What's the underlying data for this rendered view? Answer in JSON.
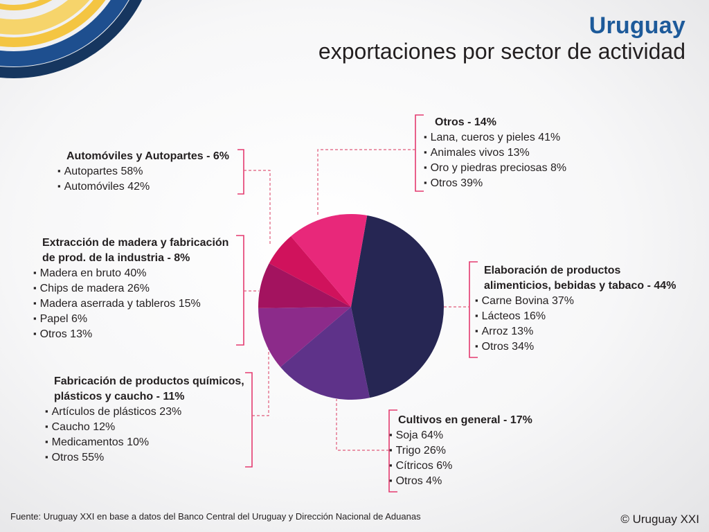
{
  "header": {
    "title": "Uruguay",
    "subtitle": "exportaciones por sector de actividad"
  },
  "chart_data": {
    "type": "pie",
    "title": "exportaciones por sector de actividad",
    "slices": [
      {
        "label": "Elaboración de productos alimenticios, bebidas y tabaco",
        "value": 44,
        "color": "#262653"
      },
      {
        "label": "Cultivos en general",
        "value": 17,
        "color": "#5e3289"
      },
      {
        "label": "Fabricación de productos químicos, plásticos y caucho",
        "value": 11,
        "color": "#8c2b8a"
      },
      {
        "label": "Extracción de madera y fabricación de prod. de la industria",
        "value": 8,
        "color": "#a3135f"
      },
      {
        "label": "Automóviles y Autopartes",
        "value": 6,
        "color": "#d0125c"
      },
      {
        "label": "Otros",
        "value": 14,
        "color": "#e8287a"
      }
    ],
    "start_angle_deg": -80,
    "direction": "clockwise",
    "bracket_color": "#e43a6f",
    "leader_color": "#e05a7a"
  },
  "sections": {
    "alimentos": {
      "title_line1": "Elaboración de productos",
      "title_line2": "alimenticios, bebidas y tabaco - 44%",
      "items": [
        "Carne Bovina  37%",
        "Lácteos 16%",
        "Arroz 13%",
        "Otros 34%"
      ]
    },
    "cultivos": {
      "title": "Cultivos en general  - 17%",
      "items": [
        "Soja 64%",
        "Trigo 26%",
        "Cítricos 6%",
        "Otros 4%"
      ]
    },
    "quimicos": {
      "title_line1": "Fabricación de productos químicos,",
      "title_line2": "plásticos y caucho - 11%",
      "items": [
        "Artículos de plásticos 23%",
        "Caucho 12%",
        "Medicamentos 10%",
        "Otros 55%"
      ]
    },
    "madera": {
      "title_line1": "Extracción de madera y fabricación",
      "title_line2": "de prod. de la industria  - 8%",
      "items": [
        "Madera en bruto 40%",
        "Chips de madera 26%",
        "Madera aserrada y tableros 15%",
        "Papel 6%",
        "Otros 13%"
      ]
    },
    "automoviles": {
      "title": "Automóviles y Autopartes - 6%",
      "items": [
        "Autopartes 58%",
        "Automóviles  42%"
      ]
    },
    "otros": {
      "title": "Otros - 14%",
      "items": [
        "Lana, cueros y pieles 41%",
        "Animales vivos 13%",
        "Oro y piedras preciosas 8%",
        "Otros 39%"
      ]
    }
  },
  "footer": {
    "source": "Fuente: Uruguay XXI en base a datos del Banco Central del Uruguay y Dirección Nacional de Aduanas",
    "copyright": "© Uruguay XXI"
  },
  "decoration": {
    "stripe_colors": [
      "#f4c542",
      "#f6d46b",
      "#1e4f8f",
      "#16365f"
    ]
  }
}
